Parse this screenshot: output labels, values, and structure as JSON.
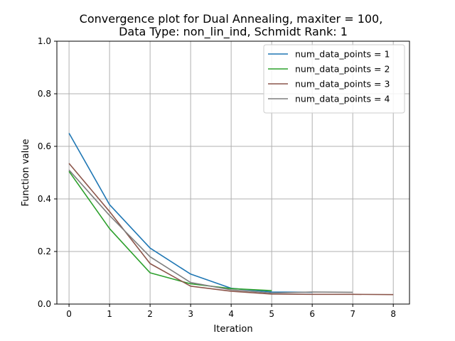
{
  "chart_data": {
    "type": "line",
    "title_line1": "Convergence plot for Dual Annealing, maxiter = 100,",
    "title_line2": "Data Type: non_lin_ind, Schmidt Rank: 1",
    "xlabel": "Iteration",
    "ylabel": "Function value",
    "xlim": [
      -0.3,
      8.4
    ],
    "ylim": [
      0,
      1.0
    ],
    "xticks": [
      "0",
      "1",
      "2",
      "3",
      "4",
      "5",
      "6",
      "7",
      "8"
    ],
    "yticks": [
      "0.0",
      "0.2",
      "0.4",
      "0.6",
      "0.8",
      "1.0"
    ],
    "grid": true,
    "legend_position": "top-right",
    "series": [
      {
        "name": "num_data_points = 1",
        "color": "#1f77b4",
        "x": [
          0,
          1,
          2,
          3,
          4,
          5,
          6
        ],
        "y": [
          0.65,
          0.378,
          0.213,
          0.114,
          0.06,
          0.046,
          0.045
        ]
      },
      {
        "name": "num_data_points = 2",
        "color": "#2ca02c",
        "x": [
          0,
          1,
          2,
          3,
          4,
          5
        ],
        "y": [
          0.505,
          0.287,
          0.119,
          0.077,
          0.059,
          0.051
        ]
      },
      {
        "name": "num_data_points = 3",
        "color": "#8c564b",
        "x": [
          0,
          1,
          2,
          3,
          4,
          5,
          6,
          7,
          8
        ],
        "y": [
          0.535,
          0.352,
          0.154,
          0.068,
          0.049,
          0.038,
          0.037,
          0.037,
          0.036
        ]
      },
      {
        "name": "num_data_points = 4",
        "color": "#7f7f7f",
        "x": [
          0,
          1,
          2,
          3,
          4,
          5,
          6,
          7
        ],
        "y": [
          0.51,
          0.337,
          0.18,
          0.082,
          0.054,
          0.042,
          0.046,
          0.045
        ]
      }
    ]
  }
}
